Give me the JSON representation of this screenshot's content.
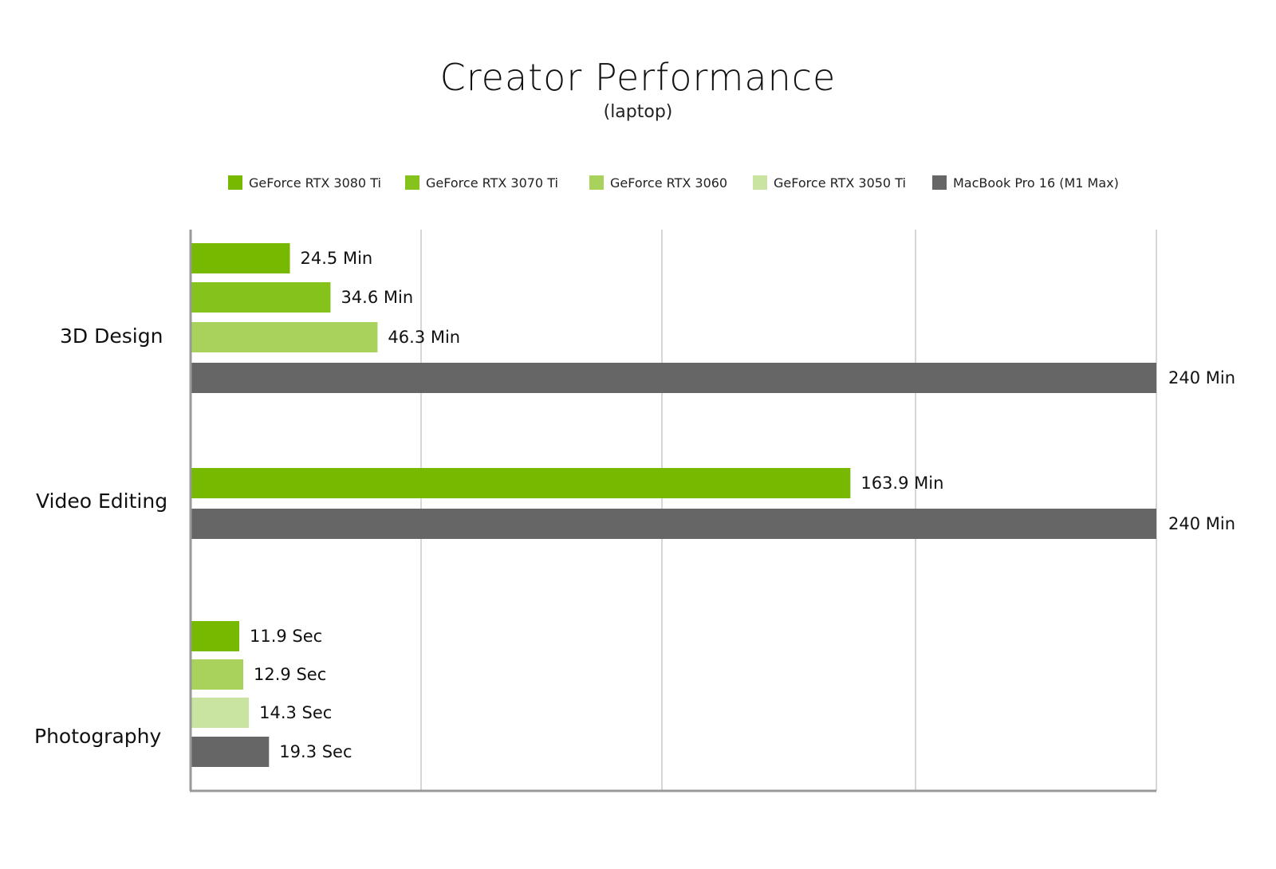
{
  "chart_data": {
    "type": "bar",
    "orientation": "horizontal",
    "title": "Creator Performance",
    "subtitle": "(laptop)",
    "xlim": [
      0,
      240
    ],
    "grid": true,
    "legend_position": "top-center",
    "series": [
      {
        "name": "GeForce RTX 3080 Ti",
        "color": "#76b900"
      },
      {
        "name": "GeForce RTX 3070 Ti",
        "color": "#85c31c"
      },
      {
        "name": "GeForce RTX 3060",
        "color": "#a8d25c"
      },
      {
        "name": "GeForce RTX 3050 Ti",
        "color": "#c9e3a0"
      },
      {
        "name": "MacBook Pro 16 (M1 Max)",
        "color": "#666666"
      }
    ],
    "groups": [
      {
        "category": "3D Design",
        "bars": [
          {
            "series": "GeForce RTX 3080 Ti",
            "value": 24.5,
            "label": "24.5 Min"
          },
          {
            "series": "GeForce RTX 3070 Ti",
            "value": 34.6,
            "label": "34.6 Min"
          },
          {
            "series": "GeForce RTX 3060",
            "value": 46.3,
            "label": "46.3 Min"
          },
          {
            "series": "MacBook Pro 16 (M1 Max)",
            "value": 240,
            "label": "240 Min"
          }
        ]
      },
      {
        "category": "Video Editing",
        "bars": [
          {
            "series": "GeForce RTX 3080 Ti",
            "value": 163.9,
            "label": "163.9 Min"
          },
          {
            "series": "MacBook Pro 16 (M1 Max)",
            "value": 240,
            "label": "240 Min"
          }
        ]
      },
      {
        "category": "Photography",
        "bars": [
          {
            "series": "GeForce RTX 3080 Ti",
            "value": 11.9,
            "label": "11.9 Sec"
          },
          {
            "series": "GeForce RTX 3060",
            "value": 12.9,
            "label": "12.9 Sec"
          },
          {
            "series": "GeForce RTX 3050 Ti",
            "value": 14.3,
            "label": "14.3 Sec"
          },
          {
            "series": "MacBook Pro 16 (M1 Max)",
            "value": 19.3,
            "label": "19.3 Sec"
          }
        ]
      }
    ]
  }
}
